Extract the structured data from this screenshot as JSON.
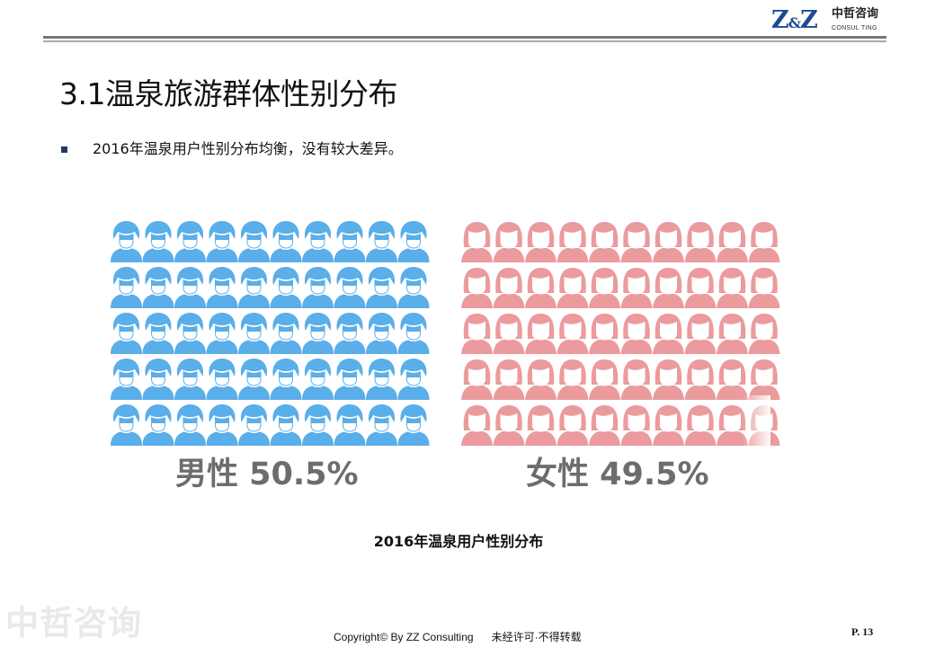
{
  "header": {
    "logo_mark": "Z&Z",
    "logo_cn": "中哲咨询",
    "logo_en": "CONSUL TING"
  },
  "slide": {
    "title": "3.1温泉旅游群体性别分布",
    "bullet": "2016年温泉用户性别分布均衡，没有较大差异。"
  },
  "chart_data": {
    "type": "pictogram",
    "title": "2016年温泉用户性别分布",
    "unit": "%",
    "icons_per_panel": 50,
    "grid": {
      "rows": 5,
      "cols": 10
    },
    "series": [
      {
        "name": "男性",
        "value": 50.5,
        "label": "男性 50.5%",
        "color": "#5aaee9"
      },
      {
        "name": "女性",
        "value": 49.5,
        "label": "女性 49.5%",
        "color": "#eb9b9d"
      }
    ]
  },
  "footer": {
    "watermark": "中哲咨询",
    "copyright": "Copyright© By  ZZ Consulting",
    "notice": "未经许可·不得转载",
    "page": "P. 13"
  }
}
